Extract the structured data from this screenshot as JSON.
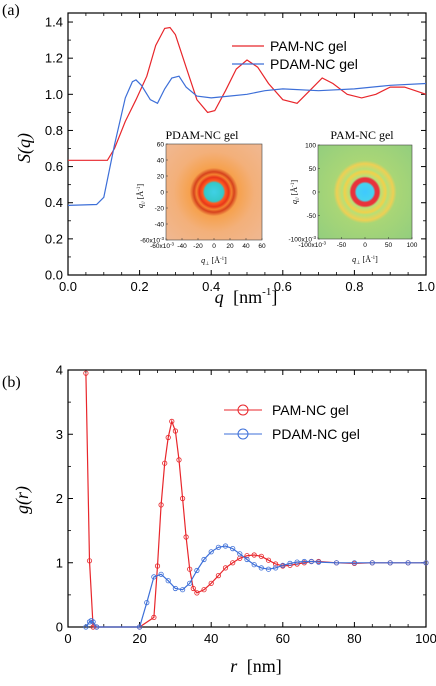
{
  "chart_data": [
    {
      "panel_label": "(a)",
      "type": "line",
      "xlabel_var": "q",
      "xlabel_unit": "[nm",
      "xlabel_exp": "-1",
      "xlabel_close": "]",
      "ylabel": "S(q)",
      "xlim": [
        0.0,
        1.0
      ],
      "ylim": [
        0.0,
        1.45
      ],
      "xticks": [
        "0.0",
        "0.2",
        "0.4",
        "0.6",
        "0.8",
        "1.0"
      ],
      "yticks": [
        "0.0",
        "0.2",
        "0.4",
        "0.6",
        "0.8",
        "1.0",
        "1.2",
        "1.4"
      ],
      "legend_position": "top-right",
      "series": [
        {
          "name": "PAM-NC gel",
          "color": "#e8262b",
          "x": [
            0.0,
            0.11,
            0.13,
            0.16,
            0.19,
            0.22,
            0.245,
            0.27,
            0.285,
            0.3,
            0.33,
            0.36,
            0.39,
            0.41,
            0.44,
            0.47,
            0.5,
            0.53,
            0.56,
            0.6,
            0.64,
            0.68,
            0.71,
            0.74,
            0.78,
            0.82,
            0.86,
            0.9,
            0.94,
            0.97,
            1.0
          ],
          "y": [
            0.635,
            0.635,
            0.7,
            0.85,
            0.97,
            1.1,
            1.27,
            1.365,
            1.37,
            1.33,
            1.15,
            0.97,
            0.9,
            0.91,
            1.02,
            1.14,
            1.19,
            1.15,
            1.06,
            0.97,
            0.95,
            1.03,
            1.09,
            1.06,
            1.0,
            0.98,
            1.0,
            1.04,
            1.04,
            1.02,
            1.0
          ]
        },
        {
          "name": "PDAM-NC gel",
          "color": "#3d6fd8",
          "x": [
            0.0,
            0.08,
            0.1,
            0.13,
            0.16,
            0.18,
            0.19,
            0.205,
            0.23,
            0.25,
            0.27,
            0.29,
            0.31,
            0.33,
            0.36,
            0.4,
            0.45,
            0.5,
            0.55,
            0.6,
            0.7,
            0.8,
            0.9,
            1.0
          ],
          "y": [
            0.385,
            0.39,
            0.43,
            0.72,
            0.98,
            1.07,
            1.08,
            1.05,
            0.97,
            0.95,
            1.03,
            1.09,
            1.1,
            1.04,
            0.99,
            0.98,
            0.99,
            1.0,
            1.02,
            1.03,
            1.02,
            1.03,
            1.05,
            1.06
          ]
        }
      ],
      "insets": [
        {
          "title": "PDAM-NC gel",
          "scheme": "orange",
          "ylabel_var": "q",
          "ylabel_sub": "//",
          "ylabel_unit": "[Å",
          "ylabel_exp": "-1",
          "ylabel_close": "]",
          "xlabel_var": "q",
          "xlabel_sub": "⊥",
          "xlabel_unit": "[Å",
          "xlabel_exp": "-1",
          "xlabel_close": "]",
          "yticks": [
            "60",
            "40",
            "20",
            "0",
            "-20",
            "-40",
            "-60x10"
          ],
          "y_exp": "-3",
          "xticks": [
            "-60x10",
            "-40",
            "-20",
            "0",
            "20",
            "40",
            "60"
          ],
          "x_exp": "-3"
        },
        {
          "title": "PAM-NC  gel",
          "scheme": "green",
          "ylabel_var": "q",
          "ylabel_sub": "//",
          "ylabel_unit": "[Å",
          "ylabel_exp": "-1",
          "ylabel_close": "]",
          "xlabel_var": "q",
          "xlabel_sub": "⊥",
          "xlabel_unit": "[Å",
          "xlabel_exp": "-1",
          "xlabel_close": "]",
          "yticks": [
            "100",
            "50",
            "0",
            "-50",
            "-100x10"
          ],
          "y_exp": "-3",
          "xticks": [
            "-100x10",
            "-50",
            "0",
            "50",
            "100"
          ],
          "x_exp": "-3"
        }
      ]
    },
    {
      "panel_label": "(b)",
      "type": "line",
      "xlabel_var": "r",
      "xlabel_unit": "[nm]",
      "ylabel": "g(r)",
      "xlim": [
        0,
        100
      ],
      "ylim": [
        0,
        4
      ],
      "xticks": [
        "0",
        "20",
        "40",
        "60",
        "80",
        "100"
      ],
      "yticks": [
        "0",
        "1",
        "2",
        "3",
        "4"
      ],
      "legend_position": "top-right",
      "series": [
        {
          "name": "PAM-NC gel",
          "color": "#e8262b",
          "marker": "circle",
          "x": [
            5,
            6,
            7,
            8,
            20,
            24,
            25,
            26,
            27,
            28,
            29,
            30,
            31,
            32,
            33,
            34,
            35,
            36,
            38,
            40,
            42,
            44,
            46,
            48,
            50,
            52,
            54,
            56,
            58,
            60,
            62,
            64,
            66,
            68,
            70,
            75,
            80,
            85,
            90,
            95,
            100
          ],
          "y": [
            3.95,
            1.03,
            0.0,
            0.0,
            0.0,
            0.15,
            0.95,
            1.9,
            2.55,
            2.95,
            3.2,
            3.05,
            2.6,
            2.0,
            1.4,
            0.9,
            0.6,
            0.53,
            0.58,
            0.68,
            0.8,
            0.92,
            1.0,
            1.07,
            1.11,
            1.12,
            1.1,
            1.04,
            0.98,
            0.95,
            0.96,
            0.98,
            1.0,
            1.02,
            1.02,
            1.0,
            0.99,
            1.0,
            1.0,
            1.0,
            1.0
          ]
        },
        {
          "name": "PDAM-NC gel",
          "color": "#3d6fd8",
          "marker": "circle",
          "x": [
            5,
            6,
            6.5,
            7,
            8,
            20,
            22,
            24,
            26,
            28,
            30,
            32,
            34,
            36,
            38,
            40,
            42,
            44,
            46,
            48,
            50,
            52,
            54,
            56,
            58,
            60,
            62,
            64,
            66,
            68,
            70,
            75,
            80,
            85,
            90,
            95,
            100
          ],
          "y": [
            0.0,
            0.08,
            0.1,
            0.08,
            0.0,
            0.0,
            0.38,
            0.78,
            0.82,
            0.72,
            0.6,
            0.58,
            0.68,
            0.88,
            1.05,
            1.17,
            1.24,
            1.26,
            1.22,
            1.14,
            1.05,
            0.97,
            0.92,
            0.9,
            0.92,
            0.96,
            0.99,
            1.01,
            1.02,
            1.02,
            1.01,
            1.0,
            1.0,
            1.0,
            1.0,
            1.0,
            1.0
          ]
        }
      ]
    }
  ]
}
